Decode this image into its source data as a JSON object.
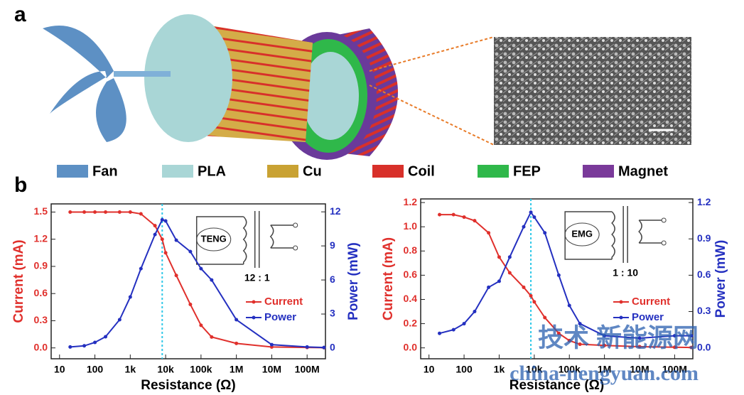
{
  "panel_labels": [
    "a",
    "b"
  ],
  "device_legend": [
    {
      "label": "Fan",
      "color": "#5d90c4"
    },
    {
      "label": "PLA",
      "color": "#a9d6d6"
    },
    {
      "label": "Cu",
      "color": "#c9a233"
    },
    {
      "label": "Coil",
      "color": "#d8302a"
    },
    {
      "label": "FEP",
      "color": "#2fb84a"
    },
    {
      "label": "Magnet",
      "color": "#7a3a9a"
    }
  ],
  "watermark": [
    "技术 新能源网",
    "china-nengyuan.com"
  ],
  "chart_data": [
    {
      "type": "line",
      "xlabel": "Resistance (Ω)",
      "ylabel": "Current (mA)",
      "y2label": "Power (mW)",
      "xscale": "log",
      "xlim": [
        5.8,
        330000000
      ],
      "xticks": [
        10,
        100,
        {
          "value": 1000,
          "label": "1k"
        },
        {
          "value": 10000,
          "label": "10k"
        },
        {
          "value": 100000,
          "label": "100k"
        },
        {
          "value": 1000000,
          "label": "1M"
        },
        {
          "value": 10000000,
          "label": "10M"
        },
        {
          "value": 100000000,
          "label": "100M"
        }
      ],
      "ylim": [
        -0.12,
        1.59
      ],
      "yticks": [
        {
          "value": 0,
          "label": "0.0"
        },
        0.3,
        0.6,
        0.9,
        1.2,
        1.5
      ],
      "y2lim": [
        -0.94,
        12.7
      ],
      "y2ticks": [
        0,
        3,
        6,
        9,
        12
      ],
      "vline": 8000,
      "vline_color": "#30c8e8",
      "legend": "lower right",
      "inset": {
        "label": "TENG",
        "ratio": "12 : 1"
      },
      "x": [
        20,
        50,
        100,
        200,
        500,
        1000,
        2000,
        5000,
        8000,
        10000,
        20000,
        50000,
        100000,
        200000,
        1000000,
        10000000,
        100000000,
        300000000
      ],
      "series": [
        {
          "name": "Current",
          "color": "#e0302c",
          "axis": "y",
          "values": [
            1.5,
            1.5,
            1.5,
            1.5,
            1.5,
            1.5,
            1.48,
            1.35,
            1.2,
            1.05,
            0.8,
            0.48,
            0.25,
            0.12,
            0.05,
            0.01,
            0.005,
            0.003
          ]
        },
        {
          "name": "Power",
          "color": "#2430c0",
          "axis": "y2",
          "values": [
            0.1,
            0.2,
            0.5,
            1.0,
            2.5,
            4.5,
            7,
            10,
            11.3,
            11.2,
            9.5,
            8.5,
            7,
            6,
            2.5,
            0.3,
            0.1,
            0.05
          ]
        }
      ]
    },
    {
      "type": "line",
      "xlabel": "Resistance (Ω)",
      "ylabel": "Current (mA)",
      "y2label": "Power (mW)",
      "xscale": "log",
      "xlim": [
        5.8,
        330000000
      ],
      "xticks": [
        10,
        100,
        {
          "value": 1000,
          "label": "1k"
        },
        {
          "value": 10000,
          "label": "10k"
        },
        {
          "value": 100000,
          "label": "100k"
        },
        {
          "value": 1000000,
          "label": "1M"
        },
        {
          "value": 10000000,
          "label": "10M"
        },
        {
          "value": 100000000,
          "label": "100M"
        }
      ],
      "ylim": [
        -0.09,
        1.23
      ],
      "yticks": [
        {
          "value": 0,
          "label": "0.0"
        },
        0.2,
        0.4,
        0.6,
        0.8,
        {
          "value": 1,
          "label": "1.0"
        },
        1.2
      ],
      "y2lim": [
        -0.09,
        1.23
      ],
      "y2ticks": [
        {
          "value": 0,
          "label": "0.0"
        },
        0.3,
        0.6,
        0.9,
        1.2
      ],
      "vline": 8000,
      "vline_color": "#30c8e8",
      "legend": "lower right",
      "inset": {
        "label": "EMG",
        "ratio": "1 : 10"
      },
      "x": [
        20,
        50,
        100,
        200,
        500,
        1000,
        2000,
        5000,
        8000,
        10000,
        20000,
        50000,
        100000,
        200000,
        1000000,
        10000000,
        100000000,
        300000000
      ],
      "series": [
        {
          "name": "Current",
          "color": "#e0302c",
          "axis": "y",
          "values": [
            1.1,
            1.1,
            1.08,
            1.05,
            0.95,
            0.75,
            0.62,
            0.5,
            0.43,
            0.38,
            0.25,
            0.12,
            0.06,
            0.03,
            0.02,
            0.01,
            0.005,
            0.003
          ]
        },
        {
          "name": "Power",
          "color": "#2430c0",
          "axis": "y2",
          "values": [
            0.12,
            0.15,
            0.2,
            0.3,
            0.5,
            0.55,
            0.75,
            1.0,
            1.12,
            1.08,
            0.95,
            0.6,
            0.35,
            0.2,
            0.1,
            0.08,
            0.1,
            0.1
          ]
        }
      ]
    }
  ]
}
